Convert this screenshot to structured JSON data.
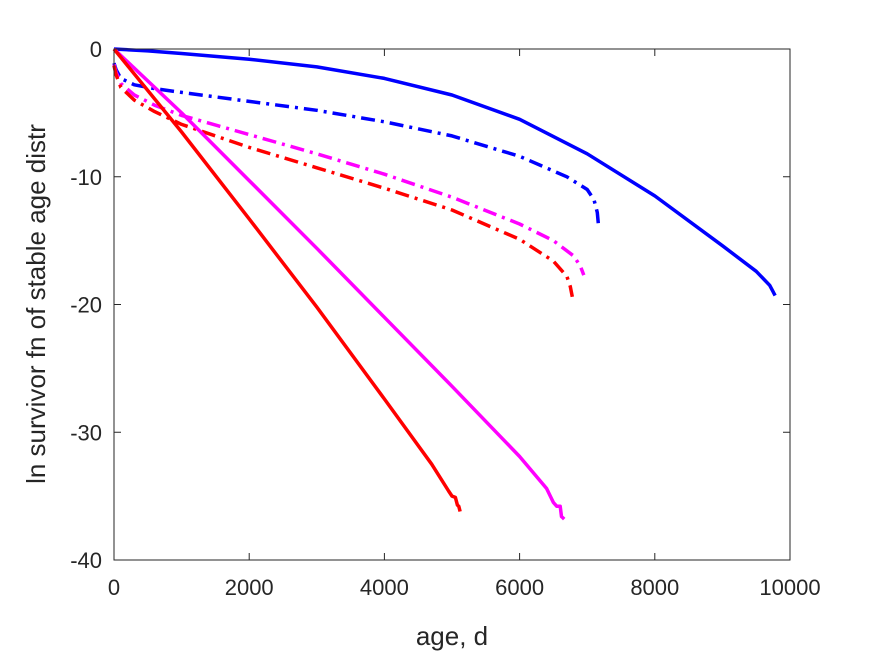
{
  "chart_data": {
    "type": "line",
    "title": "",
    "xlabel": "age, d",
    "ylabel": "ln survivor fn of stable age distr",
    "xlim": [
      0,
      10000
    ],
    "ylim": [
      -40,
      0
    ],
    "xticks": [
      0,
      2000,
      4000,
      6000,
      8000,
      10000
    ],
    "yticks": [
      0,
      -10,
      -20,
      -30,
      -40
    ],
    "grid": false,
    "legend": "none",
    "series": [
      {
        "color": "#0000ff",
        "style": "solid",
        "x": [
          0,
          500,
          1000,
          2000,
          3000,
          4000,
          5000,
          6000,
          7000,
          8000,
          9000,
          9500,
          9700,
          9750,
          9780
        ],
        "y": [
          0,
          -0.15,
          -0.35,
          -0.8,
          -1.4,
          -2.3,
          -3.6,
          -5.5,
          -8.2,
          -11.5,
          -15.4,
          -17.4,
          -18.5,
          -19.0,
          -19.3
        ]
      },
      {
        "color": "#0000ff",
        "style": "dashdot",
        "x": [
          0,
          30,
          100,
          300,
          600,
          1000,
          2000,
          3000,
          4000,
          5000,
          6000,
          6700,
          7000,
          7100,
          7150,
          7170
        ],
        "y": [
          -1.1,
          -1.6,
          -2.3,
          -2.8,
          -3.1,
          -3.4,
          -4.1,
          -4.8,
          -5.7,
          -6.8,
          -8.4,
          -10.0,
          -11.0,
          -11.8,
          -12.8,
          -14.0
        ]
      },
      {
        "color": "#ff00ff",
        "style": "dashdot",
        "x": [
          0,
          30,
          100,
          300,
          600,
          1000,
          2000,
          3000,
          4000,
          5000,
          6000,
          6500,
          6800,
          6900,
          6950
        ],
        "y": [
          -1.2,
          -1.8,
          -2.7,
          -3.6,
          -4.4,
          -5.2,
          -6.7,
          -8.2,
          -9.8,
          -11.6,
          -13.7,
          -15.0,
          -16.2,
          -17.0,
          -17.7
        ]
      },
      {
        "color": "#ff0000",
        "style": "dashdot",
        "x": [
          0,
          30,
          100,
          300,
          600,
          1000,
          2000,
          3000,
          4000,
          5000,
          6000,
          6500,
          6700,
          6750,
          6780
        ],
        "y": [
          -1.3,
          -2.0,
          -3.0,
          -4.0,
          -4.9,
          -5.9,
          -7.7,
          -9.3,
          -10.9,
          -12.6,
          -14.9,
          -16.6,
          -17.8,
          -18.6,
          -19.4
        ]
      },
      {
        "color": "#ff00ff",
        "style": "solid",
        "x": [
          0,
          1000,
          2000,
          3000,
          4000,
          5000,
          6000,
          6400,
          6500,
          6550,
          6600,
          6620,
          6640,
          6660
        ],
        "y": [
          0,
          -5.0,
          -10.3,
          -15.6,
          -21.0,
          -26.4,
          -31.9,
          -34.4,
          -35.5,
          -35.8,
          -35.8,
          -36.6,
          -36.7,
          -36.8
        ]
      },
      {
        "color": "#ff0000",
        "style": "solid",
        "x": [
          0,
          1000,
          2000,
          3000,
          4000,
          4700,
          4950,
          5000,
          5050,
          5080,
          5100,
          5120
        ],
        "y": [
          0,
          -6.5,
          -13.3,
          -20.2,
          -27.4,
          -32.5,
          -34.6,
          -35.0,
          -35.1,
          -35.7,
          -35.8,
          -36.2
        ]
      }
    ]
  }
}
